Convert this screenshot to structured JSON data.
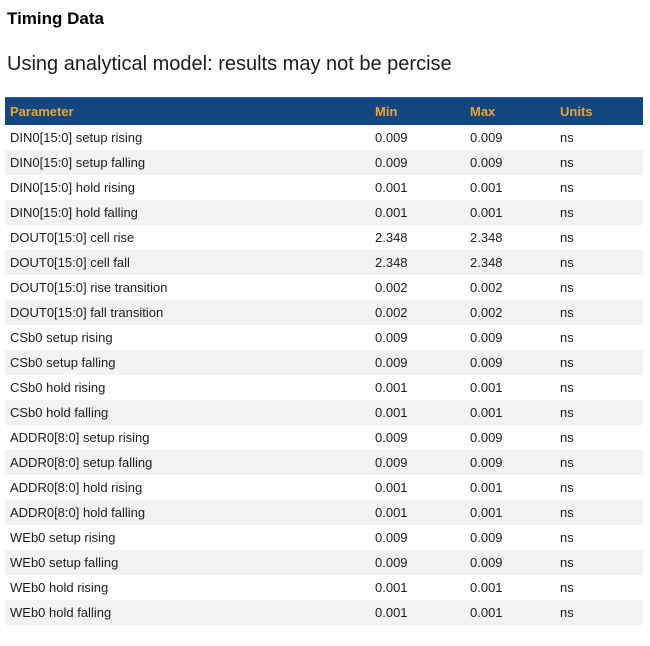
{
  "page": {
    "title": "Timing Data",
    "subtitle": "Using analytical model: results may not be percise"
  },
  "colors": {
    "header_background": "#124680",
    "header_text": "#F0A42F",
    "row_stripe": "#F1F2F2",
    "body_text": "#1c1c1c"
  },
  "table": {
    "columns": [
      "Parameter",
      "Min",
      "Max",
      "Units"
    ],
    "rows": [
      {
        "param": "DIN0[15:0] setup rising",
        "min": "0.009",
        "max": "0.009",
        "units": "ns"
      },
      {
        "param": "DIN0[15:0] setup falling",
        "min": "0.009",
        "max": "0.009",
        "units": "ns"
      },
      {
        "param": "DIN0[15:0] hold rising",
        "min": "0.001",
        "max": "0.001",
        "units": "ns"
      },
      {
        "param": "DIN0[15:0] hold falling",
        "min": "0.001",
        "max": "0.001",
        "units": "ns"
      },
      {
        "param": "DOUT0[15:0] cell rise",
        "min": "2.348",
        "max": "2.348",
        "units": "ns"
      },
      {
        "param": "DOUT0[15:0] cell fall",
        "min": "2.348",
        "max": "2.348",
        "units": "ns"
      },
      {
        "param": "DOUT0[15:0] rise transition",
        "min": "0.002",
        "max": "0.002",
        "units": "ns"
      },
      {
        "param": "DOUT0[15:0] fall transition",
        "min": "0.002",
        "max": "0.002",
        "units": "ns"
      },
      {
        "param": "CSb0 setup rising",
        "min": "0.009",
        "max": "0.009",
        "units": "ns"
      },
      {
        "param": "CSb0 setup falling",
        "min": "0.009",
        "max": "0.009",
        "units": "ns"
      },
      {
        "param": "CSb0 hold rising",
        "min": "0.001",
        "max": "0.001",
        "units": "ns"
      },
      {
        "param": "CSb0 hold falling",
        "min": "0.001",
        "max": "0.001",
        "units": "ns"
      },
      {
        "param": "ADDR0[8:0] setup rising",
        "min": "0.009",
        "max": "0.009",
        "units": "ns"
      },
      {
        "param": "ADDR0[8:0] setup falling",
        "min": "0.009",
        "max": "0.009",
        "units": "ns"
      },
      {
        "param": "ADDR0[8:0] hold rising",
        "min": "0.001",
        "max": "0.001",
        "units": "ns"
      },
      {
        "param": "ADDR0[8:0] hold falling",
        "min": "0.001",
        "max": "0.001",
        "units": "ns"
      },
      {
        "param": "WEb0 setup rising",
        "min": "0.009",
        "max": "0.009",
        "units": "ns"
      },
      {
        "param": "WEb0 setup falling",
        "min": "0.009",
        "max": "0.009",
        "units": "ns"
      },
      {
        "param": "WEb0 hold rising",
        "min": "0.001",
        "max": "0.001",
        "units": "ns"
      },
      {
        "param": "WEb0 hold falling",
        "min": "0.001",
        "max": "0.001",
        "units": "ns"
      }
    ]
  }
}
